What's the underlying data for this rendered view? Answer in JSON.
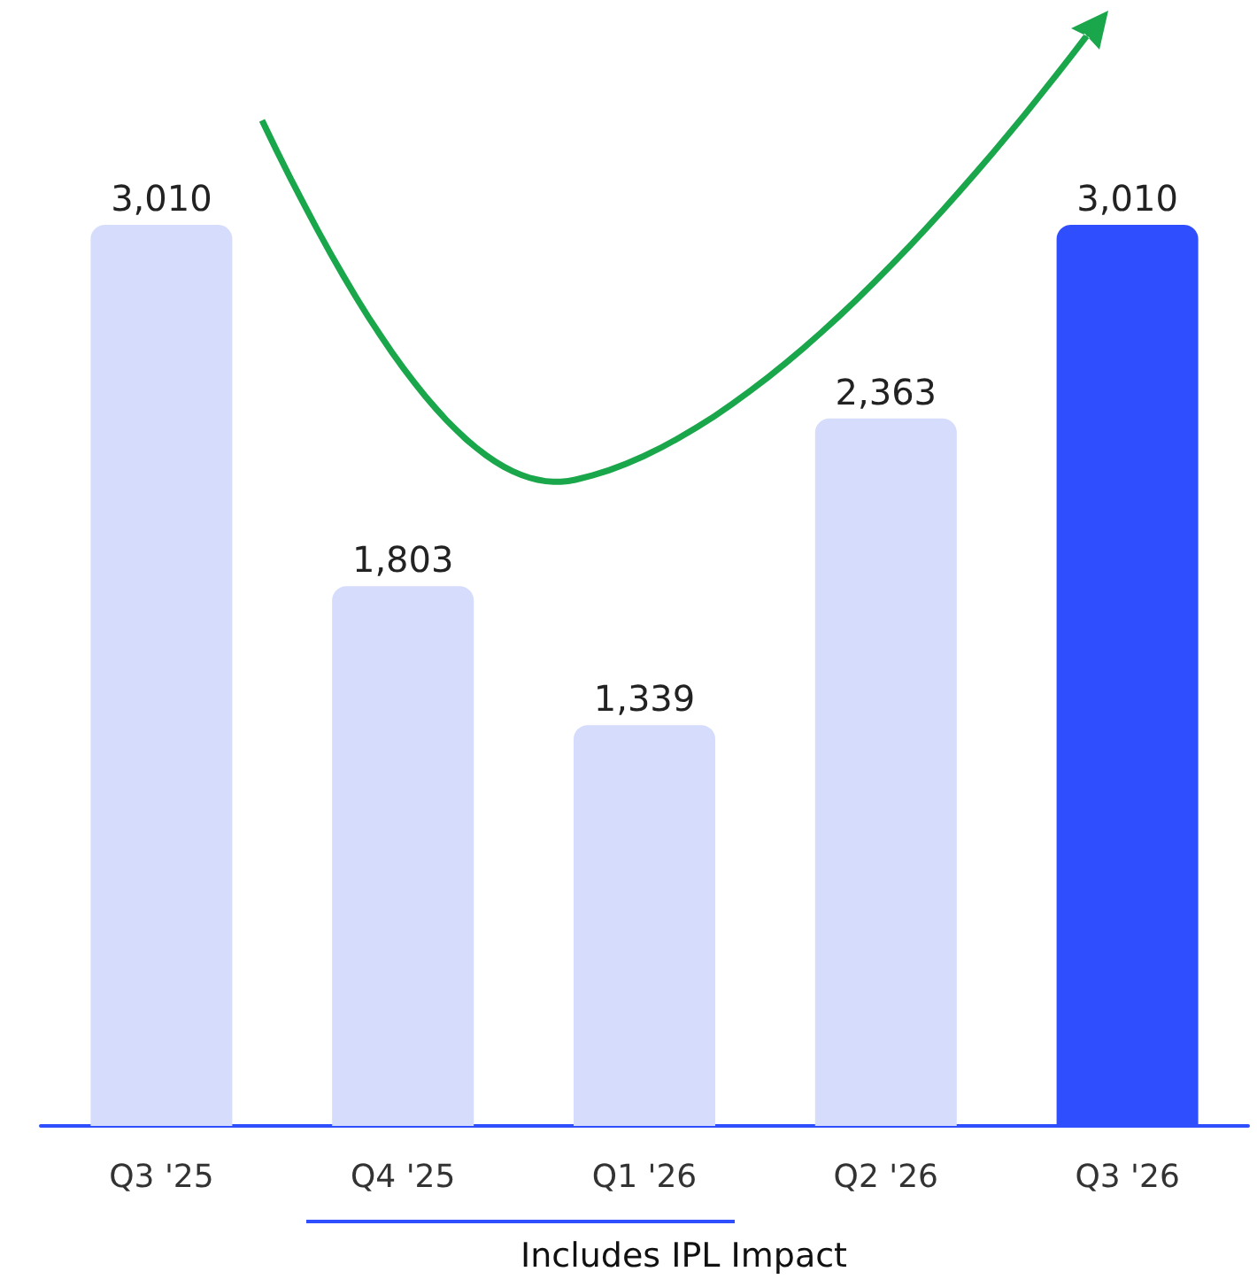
{
  "chart_data": {
    "type": "bar",
    "categories": [
      "Q3 '25",
      "Q4 '25",
      "Q1 '26",
      "Q2 '26",
      "Q3 '26"
    ],
    "values": [
      3010,
      1803,
      1339,
      2363,
      3010
    ],
    "colors": [
      "#d6dcfb",
      "#d6dcfb",
      "#d6dcfb",
      "#d6dcfb",
      "#2f4ffe"
    ],
    "value_labels": [
      "3,010",
      "1,803",
      "1,339",
      "2,363",
      "3,010"
    ],
    "annotations": [
      "Includes IPL Impact"
    ]
  }
}
